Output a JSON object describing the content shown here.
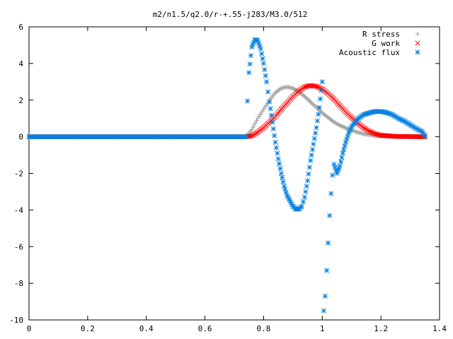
{
  "chart_data": {
    "type": "scatter",
    "title": "m2/n1.5/q2.0/r-+.55-j283/M3.0/512",
    "xlabel": "",
    "ylabel": "",
    "xlim": [
      0,
      1.4
    ],
    "ylim": [
      -10,
      6
    ],
    "x_ticks": [
      "0",
      "0.2",
      "0.4",
      "0.6",
      "0.8",
      "1",
      "1.2",
      "1.4"
    ],
    "y_ticks": [
      "6",
      "4",
      "2",
      "0",
      "-2",
      "-4",
      "-6",
      "-8",
      "-10"
    ],
    "grid": false,
    "legend_position": "top-right",
    "series": [
      {
        "name": "R stress",
        "marker": "plus",
        "color": "#a0a0a0",
        "points": [
          [
            0,
            0
          ],
          [
            0.74,
            0
          ],
          [
            0.76,
            0.4
          ],
          [
            0.78,
            1.0
          ],
          [
            0.8,
            1.5
          ],
          [
            0.82,
            2.0
          ],
          [
            0.84,
            2.4
          ],
          [
            0.86,
            2.65
          ],
          [
            0.88,
            2.72
          ],
          [
            0.9,
            2.65
          ],
          [
            0.92,
            2.45
          ],
          [
            0.94,
            2.2
          ],
          [
            0.96,
            1.9
          ],
          [
            0.98,
            1.6
          ],
          [
            1.0,
            1.3
          ],
          [
            1.02,
            1.05
          ],
          [
            1.04,
            0.8
          ],
          [
            1.06,
            0.62
          ],
          [
            1.08,
            0.48
          ],
          [
            1.1,
            0.35
          ],
          [
            1.12,
            0.25
          ],
          [
            1.14,
            0.16
          ],
          [
            1.16,
            0.1
          ],
          [
            1.18,
            0.06
          ],
          [
            1.2,
            0.03
          ],
          [
            1.25,
            0.01
          ],
          [
            1.35,
            0
          ]
        ]
      },
      {
        "name": "G work",
        "marker": "cross",
        "color": "#ff0000",
        "points": [
          [
            0,
            0
          ],
          [
            0.74,
            0
          ],
          [
            0.76,
            0.05
          ],
          [
            0.78,
            0.25
          ],
          [
            0.8,
            0.5
          ],
          [
            0.82,
            0.8
          ],
          [
            0.84,
            1.1
          ],
          [
            0.86,
            1.5
          ],
          [
            0.88,
            1.85
          ],
          [
            0.9,
            2.2
          ],
          [
            0.92,
            2.5
          ],
          [
            0.94,
            2.72
          ],
          [
            0.96,
            2.8
          ],
          [
            0.98,
            2.75
          ],
          [
            1.0,
            2.6
          ],
          [
            1.02,
            2.35
          ],
          [
            1.04,
            2.05
          ],
          [
            1.06,
            1.7
          ],
          [
            1.08,
            1.35
          ],
          [
            1.1,
            1.05
          ],
          [
            1.12,
            0.75
          ],
          [
            1.14,
            0.5
          ],
          [
            1.16,
            0.3
          ],
          [
            1.18,
            0.16
          ],
          [
            1.2,
            0.08
          ],
          [
            1.25,
            0.02
          ],
          [
            1.35,
            0
          ]
        ]
      },
      {
        "name": "Acoustic flux",
        "marker": "star",
        "color": "#0a80e0",
        "points": [
          [
            0,
            0
          ],
          [
            0.74,
            0
          ],
          [
            0.745,
            1.95
          ],
          [
            0.75,
            3.5
          ],
          [
            0.76,
            4.9
          ],
          [
            0.77,
            5.3
          ],
          [
            0.78,
            5.25
          ],
          [
            0.79,
            4.8
          ],
          [
            0.8,
            4.0
          ],
          [
            0.81,
            3.0
          ],
          [
            0.82,
            1.9
          ],
          [
            0.83,
            0.8
          ],
          [
            0.84,
            -0.3
          ],
          [
            0.85,
            -1.2
          ],
          [
            0.86,
            -2.0
          ],
          [
            0.87,
            -2.7
          ],
          [
            0.88,
            -3.2
          ],
          [
            0.89,
            -3.5
          ],
          [
            0.9,
            -3.8
          ],
          [
            0.91,
            -3.95
          ],
          [
            0.92,
            -3.95
          ],
          [
            0.93,
            -3.8
          ],
          [
            0.94,
            -3.3
          ],
          [
            0.95,
            -2.4
          ],
          [
            0.96,
            -1.3
          ],
          [
            0.97,
            -0.4
          ],
          [
            0.98,
            0.5
          ],
          [
            0.99,
            1.6
          ],
          [
            1.0,
            3.0
          ],
          [
            1.005,
            -9.5
          ],
          [
            1.01,
            -8.7
          ],
          [
            1.015,
            -7.3
          ],
          [
            1.02,
            -5.8
          ],
          [
            1.025,
            -4.3
          ],
          [
            1.03,
            -3.1
          ],
          [
            1.035,
            -2.1
          ],
          [
            1.04,
            -1.5
          ],
          [
            1.05,
            -2.0
          ],
          [
            1.06,
            -1.6
          ],
          [
            1.07,
            -0.9
          ],
          [
            1.08,
            -0.3
          ],
          [
            1.09,
            0.2
          ],
          [
            1.1,
            0.55
          ],
          [
            1.12,
            0.95
          ],
          [
            1.14,
            1.2
          ],
          [
            1.16,
            1.3
          ],
          [
            1.18,
            1.38
          ],
          [
            1.2,
            1.38
          ],
          [
            1.22,
            1.32
          ],
          [
            1.24,
            1.2
          ],
          [
            1.26,
            1.0
          ],
          [
            1.28,
            0.85
          ],
          [
            1.3,
            0.65
          ],
          [
            1.32,
            0.45
          ],
          [
            1.34,
            0.28
          ],
          [
            1.35,
            0.05
          ]
        ]
      }
    ]
  }
}
